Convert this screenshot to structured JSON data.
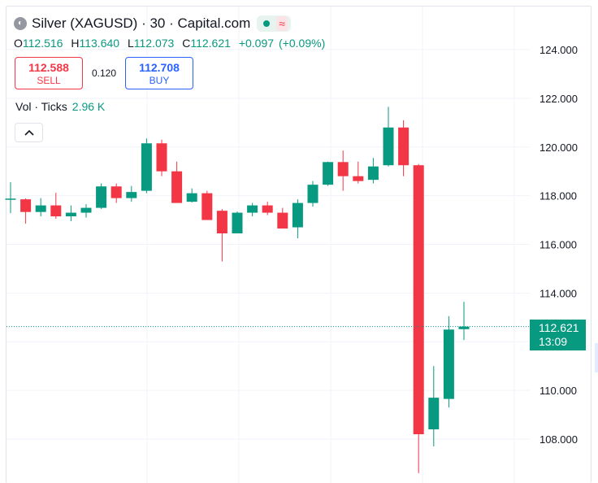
{
  "header": {
    "symbol": "Silver (XAGUSD) · 30 · Capital.com",
    "logo_icon": "silver-logo-icon",
    "market_status": "market-open-dot-icon",
    "wave_icon": "≈"
  },
  "ohlc": {
    "open_label": "O",
    "open": "112.516",
    "high_label": "H",
    "high": "113.640",
    "low_label": "L",
    "low": "112.073",
    "close_label": "C",
    "close": "112.621",
    "change": "+0.097",
    "change_pct": "(+0.09%)"
  },
  "trade": {
    "sell_price": "112.588",
    "sell_label": "SELL",
    "spread": "0.120",
    "buy_price": "112.708",
    "buy_label": "BUY"
  },
  "volume": {
    "label": "Vol · Ticks",
    "value": "2.96 K"
  },
  "current_price": {
    "price": "112.621",
    "countdown": "13:09"
  },
  "colors": {
    "up": "#089981",
    "down": "#f23645",
    "grid": "#f0f3fa"
  },
  "chart_data": {
    "type": "candlestick",
    "ylim": [
      106.5,
      124.8
    ],
    "y_ticks": [
      "108.000",
      "110.000",
      "112.000",
      "114.000",
      "116.000",
      "118.000",
      "120.000",
      "122.000",
      "124.000"
    ],
    "y_tick_values": [
      108,
      110,
      112,
      114,
      116,
      118,
      120,
      122,
      124
    ],
    "last_price": 112.621,
    "candles": [
      {
        "o": 117.88,
        "h": 118.55,
        "l": 117.28,
        "c": 117.88
      },
      {
        "o": 117.85,
        "h": 117.89,
        "l": 116.85,
        "c": 117.33
      },
      {
        "o": 117.33,
        "h": 117.9,
        "l": 117.15,
        "c": 117.6
      },
      {
        "o": 117.6,
        "h": 118.12,
        "l": 117.05,
        "c": 117.15
      },
      {
        "o": 117.15,
        "h": 117.6,
        "l": 116.95,
        "c": 117.3
      },
      {
        "o": 117.3,
        "h": 117.65,
        "l": 117.1,
        "c": 117.5
      },
      {
        "o": 117.5,
        "h": 118.5,
        "l": 117.45,
        "c": 118.38
      },
      {
        "o": 118.38,
        "h": 118.5,
        "l": 117.7,
        "c": 117.9
      },
      {
        "o": 117.9,
        "h": 118.4,
        "l": 117.75,
        "c": 118.15
      },
      {
        "o": 118.2,
        "h": 120.35,
        "l": 118.1,
        "c": 120.15
      },
      {
        "o": 120.15,
        "h": 120.3,
        "l": 118.8,
        "c": 119.0
      },
      {
        "o": 119.0,
        "h": 119.4,
        "l": 117.7,
        "c": 117.7
      },
      {
        "o": 117.75,
        "h": 118.3,
        "l": 117.72,
        "c": 118.1
      },
      {
        "o": 118.1,
        "h": 118.2,
        "l": 117.0,
        "c": 117.0
      },
      {
        "o": 117.38,
        "h": 117.45,
        "l": 115.3,
        "c": 116.45
      },
      {
        "o": 116.45,
        "h": 117.35,
        "l": 116.45,
        "c": 117.3
      },
      {
        "o": 117.3,
        "h": 117.7,
        "l": 117.15,
        "c": 117.6
      },
      {
        "o": 117.6,
        "h": 117.75,
        "l": 117.2,
        "c": 117.3
      },
      {
        "o": 117.3,
        "h": 117.5,
        "l": 116.65,
        "c": 116.65
      },
      {
        "o": 116.7,
        "h": 117.85,
        "l": 116.25,
        "c": 117.7
      },
      {
        "o": 117.7,
        "h": 118.6,
        "l": 117.55,
        "c": 118.45
      },
      {
        "o": 118.45,
        "h": 119.4,
        "l": 118.4,
        "c": 119.38
      },
      {
        "o": 119.38,
        "h": 119.85,
        "l": 118.2,
        "c": 118.8
      },
      {
        "o": 118.8,
        "h": 119.4,
        "l": 118.5,
        "c": 118.6
      },
      {
        "o": 118.65,
        "h": 119.55,
        "l": 118.5,
        "c": 119.2
      },
      {
        "o": 119.25,
        "h": 121.65,
        "l": 119.2,
        "c": 120.8
      },
      {
        "o": 120.8,
        "h": 121.1,
        "l": 118.8,
        "c": 119.25
      },
      {
        "o": 119.25,
        "h": 119.3,
        "l": 106.6,
        "c": 108.2
      },
      {
        "o": 108.4,
        "h": 111.0,
        "l": 107.7,
        "c": 109.7
      },
      {
        "o": 109.65,
        "h": 113.05,
        "l": 109.3,
        "c": 112.5
      },
      {
        "o": 112.516,
        "h": 113.64,
        "l": 112.073,
        "c": 112.621
      }
    ]
  }
}
